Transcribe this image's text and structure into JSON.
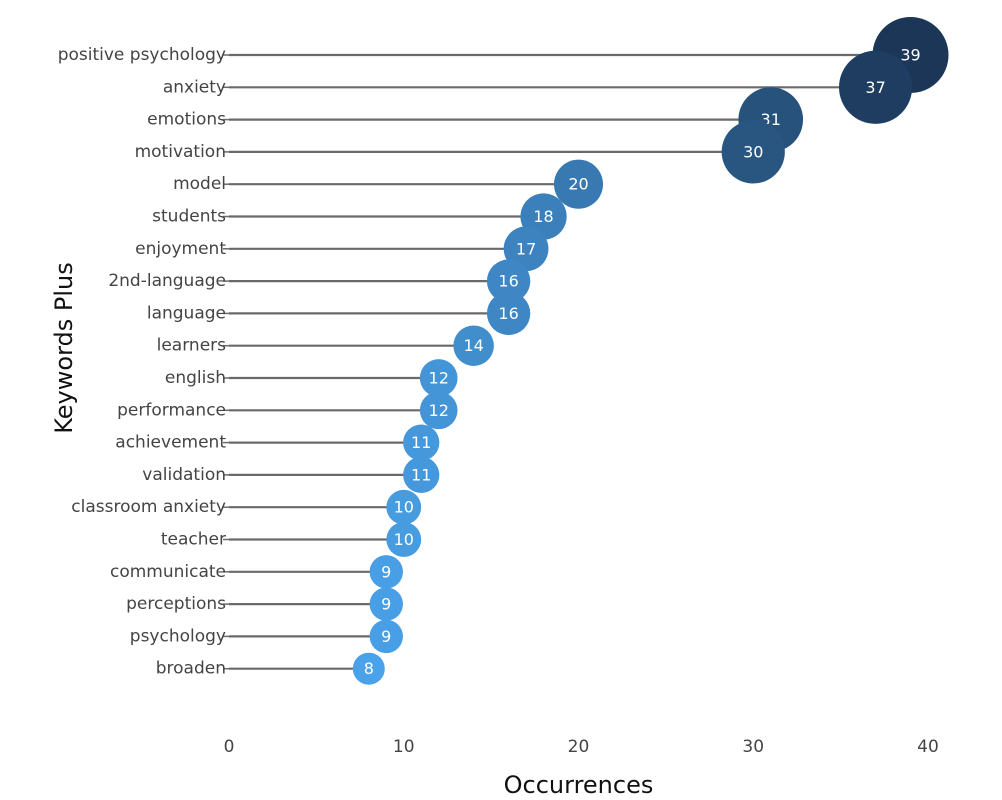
{
  "chart_data": {
    "type": "scatter",
    "title": "",
    "xlabel": "Occurrences",
    "ylabel": "Keywords Plus",
    "xlim": [
      0,
      40
    ],
    "xticks": [
      "0",
      "10",
      "20",
      "30",
      "40"
    ],
    "grid": false,
    "legend": "none",
    "color_scale": [
      "#4aa3ea",
      "#1b3656"
    ],
    "categories": [
      "positive psychology",
      "anxiety",
      "emotions",
      "motivation",
      "model",
      "students",
      "enjoyment",
      "2nd-language",
      "language",
      "learners",
      "english",
      "performance",
      "achievement",
      "validation",
      "classroom anxiety",
      "teacher",
      "communicate",
      "perceptions",
      "psychology",
      "broaden"
    ],
    "values": [
      39,
      37,
      31,
      30,
      20,
      18,
      17,
      16,
      16,
      14,
      12,
      12,
      11,
      11,
      10,
      10,
      9,
      9,
      9,
      8
    ],
    "data_labels": [
      "39",
      "37",
      "31",
      "30",
      "20",
      "18",
      "17",
      "16",
      "16",
      "14",
      "12",
      "12",
      "11",
      "11",
      "10",
      "10",
      "9",
      "9",
      "9",
      "8"
    ]
  }
}
